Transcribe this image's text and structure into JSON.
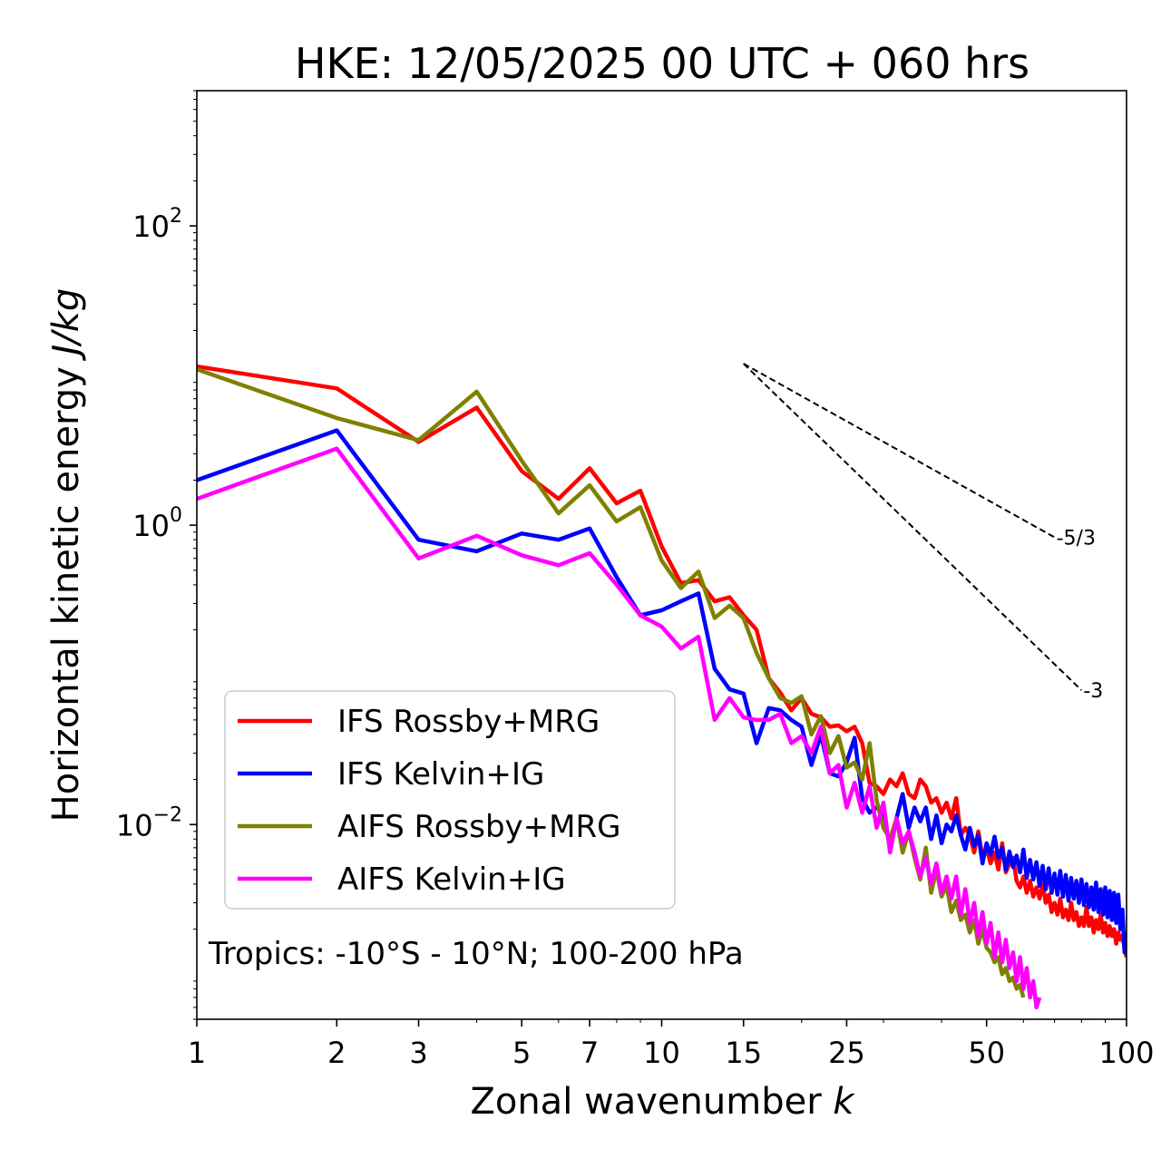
{
  "chart_data": {
    "type": "line",
    "title": "HKE: 12/05/2025 00 UTC + 060 hrs",
    "xlabel_prefix": "Zonal wavenumber ",
    "xlabel_var": "k",
    "ylabel_prefix": "Horizontal kinetic energy ",
    "ylabel_unit": "J/kg",
    "xscale": "log",
    "yscale": "log",
    "xlim": [
      1,
      100
    ],
    "ylim": [
      0.0005,
      800
    ],
    "grid": false,
    "legend_position": "lower-left",
    "annotation": "Tropics: -10°S - 10°N; 100-200 hPa",
    "x_ticks": [
      {
        "value": 1,
        "label": "1"
      },
      {
        "value": 2,
        "label": "2"
      },
      {
        "value": 3,
        "label": "3"
      },
      {
        "value": 5,
        "label": "5"
      },
      {
        "value": 7,
        "label": "7"
      },
      {
        "value": 10,
        "label": "10"
      },
      {
        "value": 15,
        "label": "15"
      },
      {
        "value": 25,
        "label": "25"
      },
      {
        "value": 50,
        "label": "50"
      },
      {
        "value": 100,
        "label": "100"
      }
    ],
    "y_ticks": [
      {
        "value": 0.01,
        "base": "10",
        "exp": "−2"
      },
      {
        "value": 1,
        "base": "10",
        "exp": "0"
      },
      {
        "value": 100,
        "base": "10",
        "exp": "2"
      }
    ],
    "reference_slopes": [
      {
        "label": "-5/3",
        "x": [
          15,
          70
        ],
        "y": [
          12.0,
          0.83
        ]
      },
      {
        "label": "-3",
        "x": [
          15,
          80
        ],
        "y": [
          12.0,
          0.079
        ]
      }
    ],
    "series": [
      {
        "name": "IFS Rossby+MRG",
        "color": "#ff0000",
        "x": [
          1,
          2,
          3,
          4,
          5,
          6,
          7,
          8,
          9,
          10,
          11,
          12,
          13,
          14,
          15,
          16,
          17,
          18,
          19,
          20,
          21,
          22,
          23,
          24,
          25,
          26,
          27,
          28,
          29,
          30,
          31,
          32,
          33,
          34,
          35,
          36,
          37,
          38,
          39,
          40,
          41,
          42,
          43,
          44,
          45,
          46,
          47,
          48,
          49,
          50,
          51,
          52,
          53,
          54,
          55,
          56,
          57,
          58,
          59,
          60,
          61,
          62,
          63,
          64,
          65,
          66,
          67,
          68,
          69,
          70,
          71,
          72,
          73,
          74,
          75,
          76,
          77,
          78,
          79,
          80,
          81,
          82,
          83,
          84,
          85,
          86,
          87,
          88,
          89,
          90,
          91,
          92,
          93,
          94,
          95,
          96,
          97,
          98,
          99,
          100
        ],
        "y": [
          11.5,
          8.2,
          3.6,
          6.1,
          2.3,
          1.5,
          2.4,
          1.4,
          1.7,
          0.72,
          0.41,
          0.43,
          0.31,
          0.33,
          0.25,
          0.2,
          0.095,
          0.076,
          0.058,
          0.07,
          0.055,
          0.052,
          0.045,
          0.046,
          0.042,
          0.045,
          0.035,
          0.019,
          0.018,
          0.016,
          0.02,
          0.018,
          0.022,
          0.016,
          0.015,
          0.02,
          0.018,
          0.014,
          0.015,
          0.012,
          0.014,
          0.011,
          0.015,
          0.0085,
          0.0095,
          0.0085,
          0.0065,
          0.009,
          0.006,
          0.007,
          0.0055,
          0.0065,
          0.005,
          0.0075,
          0.0048,
          0.0055,
          0.006,
          0.0042,
          0.0038,
          0.0045,
          0.0035,
          0.0042,
          0.0033,
          0.0038,
          0.0032,
          0.004,
          0.003,
          0.0034,
          0.0026,
          0.003,
          0.0025,
          0.0032,
          0.0024,
          0.0027,
          0.0023,
          0.003,
          0.0023,
          0.0026,
          0.0021,
          0.0024,
          0.0021,
          0.0028,
          0.0021,
          0.0024,
          0.0019,
          0.0023,
          0.002,
          0.0025,
          0.0019,
          0.0022,
          0.0018,
          0.0021,
          0.0018,
          0.002,
          0.0016,
          0.0019,
          0.0017,
          0.0018,
          0.0015,
          0.0013
        ]
      },
      {
        "name": "IFS Kelvin+IG",
        "color": "#0000ff",
        "x": [
          1,
          2,
          3,
          4,
          5,
          6,
          7,
          8,
          9,
          10,
          11,
          12,
          13,
          14,
          15,
          16,
          17,
          18,
          19,
          20,
          21,
          22,
          23,
          24,
          25,
          26,
          27,
          28,
          29,
          30,
          31,
          32,
          33,
          34,
          35,
          36,
          37,
          38,
          39,
          40,
          41,
          42,
          43,
          44,
          45,
          46,
          47,
          48,
          49,
          50,
          51,
          52,
          53,
          54,
          55,
          56,
          57,
          58,
          59,
          60,
          61,
          62,
          63,
          64,
          65,
          66,
          67,
          68,
          69,
          70,
          71,
          72,
          73,
          74,
          75,
          76,
          77,
          78,
          79,
          80,
          81,
          82,
          83,
          84,
          85,
          86,
          87,
          88,
          89,
          90,
          91,
          92,
          93,
          94,
          95,
          96,
          97,
          98,
          99,
          100
        ],
        "y": [
          2.0,
          4.3,
          0.8,
          0.67,
          0.88,
          0.8,
          0.95,
          0.45,
          0.25,
          0.27,
          0.31,
          0.35,
          0.11,
          0.08,
          0.075,
          0.035,
          0.06,
          0.058,
          0.05,
          0.045,
          0.025,
          0.04,
          0.022,
          0.021,
          0.026,
          0.038,
          0.015,
          0.012,
          0.013,
          0.012,
          0.007,
          0.011,
          0.016,
          0.0095,
          0.013,
          0.0105,
          0.013,
          0.008,
          0.0115,
          0.0075,
          0.01,
          0.009,
          0.0115,
          0.0085,
          0.0068,
          0.0095,
          0.0072,
          0.0085,
          0.0055,
          0.0075,
          0.0063,
          0.0083,
          0.006,
          0.007,
          0.005,
          0.0066,
          0.0052,
          0.0062,
          0.0048,
          0.0068,
          0.0044,
          0.0058,
          0.0043,
          0.0056,
          0.0039,
          0.0053,
          0.0037,
          0.0051,
          0.0035,
          0.0047,
          0.0034,
          0.0049,
          0.0033,
          0.0046,
          0.0031,
          0.0044,
          0.0032,
          0.0042,
          0.003,
          0.0043,
          0.0029,
          0.004,
          0.0028,
          0.0038,
          0.0027,
          0.0041,
          0.0026,
          0.0037,
          0.0025,
          0.0038,
          0.0024,
          0.0036,
          0.0023,
          0.0035,
          0.0022,
          0.0034,
          0.002,
          0.0027,
          0.0014,
          0.0019
        ]
      },
      {
        "name": "AIFS Rossby+MRG",
        "color": "#808000",
        "x": [
          1,
          2,
          3,
          4,
          5,
          6,
          7,
          8,
          9,
          10,
          11,
          12,
          13,
          14,
          15,
          16,
          17,
          18,
          19,
          20,
          21,
          22,
          23,
          24,
          25,
          26,
          27,
          28,
          29,
          30,
          31,
          32,
          33,
          34,
          35,
          36,
          37,
          38,
          39,
          40,
          41,
          42,
          43,
          44,
          45,
          46,
          47,
          48,
          49,
          50,
          51,
          52,
          53,
          54,
          55,
          56,
          57,
          58,
          59,
          60
        ],
        "y": [
          11,
          5.2,
          3.7,
          7.8,
          2.7,
          1.2,
          1.85,
          1.06,
          1.32,
          0.58,
          0.38,
          0.49,
          0.24,
          0.29,
          0.24,
          0.14,
          0.095,
          0.07,
          0.065,
          0.072,
          0.04,
          0.053,
          0.03,
          0.039,
          0.024,
          0.026,
          0.02,
          0.035,
          0.0145,
          0.0095,
          0.008,
          0.011,
          0.0065,
          0.009,
          0.006,
          0.0043,
          0.007,
          0.0035,
          0.005,
          0.0033,
          0.0039,
          0.0026,
          0.0031,
          0.0023,
          0.0025,
          0.0019,
          0.0023,
          0.0016,
          0.002,
          0.0015,
          0.0014,
          0.0012,
          0.0013,
          0.001,
          0.0011,
          0.0009,
          0.00095,
          0.0008,
          0.00085,
          0.0007
        ]
      },
      {
        "name": "AIFS Kelvin+IG",
        "color": "#ff00ff",
        "x": [
          1,
          2,
          3,
          4,
          5,
          6,
          7,
          8,
          9,
          10,
          11,
          12,
          13,
          14,
          15,
          16,
          17,
          18,
          19,
          20,
          21,
          22,
          23,
          24,
          25,
          26,
          27,
          28,
          29,
          30,
          31,
          32,
          33,
          34,
          35,
          36,
          37,
          38,
          39,
          40,
          41,
          42,
          43,
          44,
          45,
          46,
          47,
          48,
          49,
          50,
          51,
          52,
          53,
          54,
          55,
          56,
          57,
          58,
          59,
          60,
          61,
          62,
          63,
          64,
          65
        ],
        "y": [
          1.5,
          3.25,
          0.6,
          0.85,
          0.63,
          0.54,
          0.65,
          0.4,
          0.25,
          0.21,
          0.15,
          0.18,
          0.05,
          0.07,
          0.052,
          0.05,
          0.05,
          0.055,
          0.035,
          0.039,
          0.03,
          0.045,
          0.022,
          0.025,
          0.013,
          0.019,
          0.012,
          0.018,
          0.0095,
          0.014,
          0.0065,
          0.011,
          0.0075,
          0.009,
          0.0065,
          0.0045,
          0.006,
          0.004,
          0.0055,
          0.0035,
          0.0045,
          0.0032,
          0.0045,
          0.0025,
          0.0037,
          0.0022,
          0.003,
          0.0018,
          0.0026,
          0.0016,
          0.0022,
          0.0013,
          0.0019,
          0.0012,
          0.0017,
          0.0011,
          0.0014,
          0.0009,
          0.0013,
          0.0008,
          0.0011,
          0.0007,
          0.0009,
          0.0006,
          0.0007
        ]
      }
    ]
  }
}
